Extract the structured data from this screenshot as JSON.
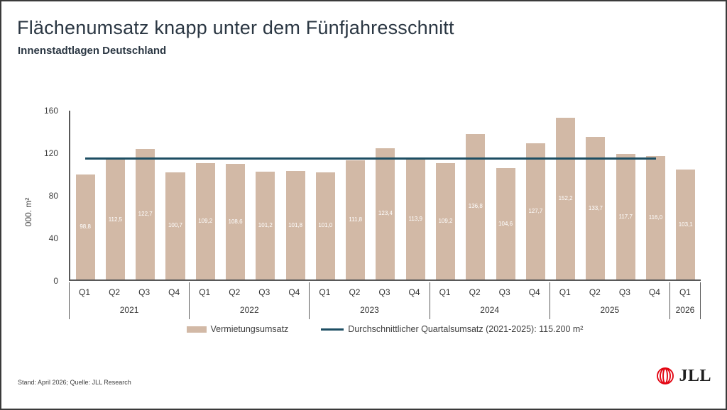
{
  "page": {
    "title": "Flächenumsatz knapp unter dem Fünfjahresschnitt",
    "subtitle": "Innenstadtlagen Deutschland",
    "footer": "Stand: April 2026; Quelle: JLL Research",
    "logo_text": "JLL"
  },
  "chart_data": {
    "type": "bar",
    "title": "Flächenumsatz knapp unter dem Fünfjahresschnitt",
    "subtitle": "Innenstadtlagen Deutschland",
    "ylabel": "000. m²",
    "xlabel": "",
    "ylim": [
      0,
      160
    ],
    "yticks": [
      0,
      40,
      80,
      120,
      160
    ],
    "grid": false,
    "legend_position": "bottom",
    "series_name": "Vermietungsumsatz",
    "groups": [
      {
        "year": "2021",
        "quarters": [
          "Q1",
          "Q2",
          "Q3",
          "Q4"
        ],
        "values": [
          98.8,
          112.5,
          122.7,
          100.7
        ],
        "labels": [
          "98,8",
          "112,5",
          "122,7",
          "100,7"
        ]
      },
      {
        "year": "2022",
        "quarters": [
          "Q1",
          "Q2",
          "Q3",
          "Q4"
        ],
        "values": [
          109.2,
          108.6,
          101.2,
          101.8
        ],
        "labels": [
          "109,2",
          "108,6",
          "101,2",
          "101,8"
        ]
      },
      {
        "year": "2023",
        "quarters": [
          "Q1",
          "Q2",
          "Q3",
          "Q4"
        ],
        "values": [
          101.0,
          111.8,
          123.4,
          113.9
        ],
        "labels": [
          "101,0",
          "111,8",
          "123,4",
          "113,9"
        ]
      },
      {
        "year": "2024",
        "quarters": [
          "Q1",
          "Q2",
          "Q3",
          "Q4"
        ],
        "values": [
          109.2,
          136.8,
          104.6,
          127.7
        ],
        "labels": [
          "109,2",
          "136,8",
          "104,6",
          "127,7"
        ]
      },
      {
        "year": "2025",
        "quarters": [
          "Q1",
          "Q2",
          "Q3",
          "Q4"
        ],
        "values": [
          152.2,
          133.7,
          117.7,
          116.0
        ],
        "labels": [
          "152,2",
          "133,7",
          "117,7",
          "116,0"
        ]
      },
      {
        "year": "2026",
        "quarters": [
          "Q1"
        ],
        "values": [
          103.1
        ],
        "labels": [
          "103,1"
        ]
      }
    ],
    "average_line": {
      "label": "Durchschnittlicher Quartalsumsatz (2021-2025): 115.200 m²",
      "value": 115.2,
      "start_quarter_index": 0,
      "end_quarter_index": 19
    },
    "colors": {
      "bar": "#d2b9a6",
      "line": "#1d4e63",
      "title": "#2b3743",
      "axis": "#595959",
      "text": "#404040",
      "logo_red": "#e30613"
    }
  }
}
